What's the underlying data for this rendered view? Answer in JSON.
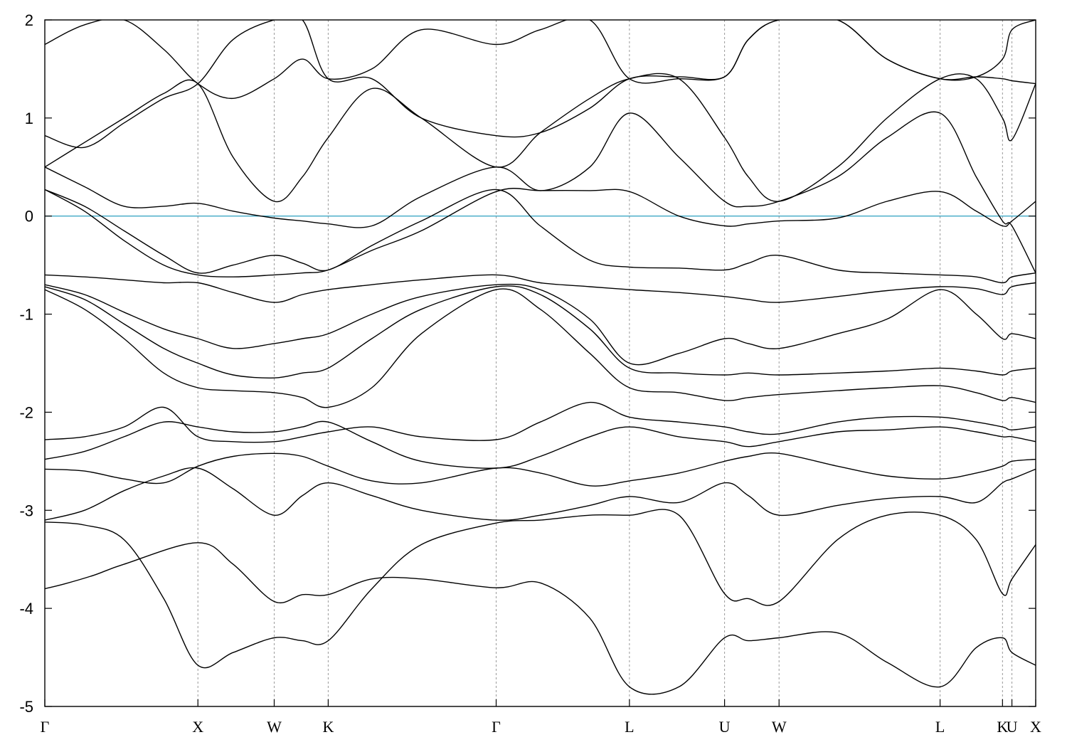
{
  "chart_data": {
    "type": "line",
    "title": "",
    "xlabel": "",
    "ylabel": "",
    "ylim": [
      -5,
      2
    ],
    "xlim": [
      0,
      1
    ],
    "grid": "dashed vertical lines at high-symmetry points",
    "legend": "none",
    "yticks": [
      "-5",
      "-4",
      "-3",
      "-2",
      "-1",
      "0",
      "1",
      "2"
    ],
    "ytick_values": [
      -5,
      -4,
      -3,
      -2,
      -1,
      0,
      1,
      2
    ],
    "kpoints": [
      {
        "label": "Γ",
        "x": 0.0
      },
      {
        "label": "X",
        "x": 0.1545
      },
      {
        "label": "W",
        "x": 0.2315
      },
      {
        "label": "K",
        "x": 0.286
      },
      {
        "label": "Γ",
        "x": 0.4555
      },
      {
        "label": "L",
        "x": 0.59
      },
      {
        "label": "U",
        "x": 0.686
      },
      {
        "label": "W",
        "x": 0.741
      },
      {
        "label": "L",
        "x": 0.9035
      },
      {
        "label": "K",
        "x": 0.9665
      },
      {
        "label": "U",
        "x": 0.976
      },
      {
        "label": "X",
        "x": 1.0
      }
    ],
    "fermi_level": 0,
    "colors": {
      "bands": "#000000",
      "fermi_line": "#3fa9c6"
    },
    "series": [
      {
        "x": [
          0,
          0.02,
          0.05,
          0.08,
          0.1545,
          0.19,
          0.2315,
          0.26,
          0.286,
          0.33,
          0.38,
          0.4555,
          0.5,
          0.55,
          0.59,
          0.64,
          0.686,
          0.71,
          0.741,
          0.8,
          0.85,
          0.9035,
          0.94,
          0.9665,
          0.976,
          1.0
        ],
        "y": [
          -3.8,
          -3.75,
          -3.66,
          -3.55,
          -3.33,
          -3.55,
          -3.93,
          -3.86,
          -3.86,
          -3.7,
          -3.7,
          -3.79,
          -3.74,
          -4.1,
          -4.8,
          -4.8,
          -4.3,
          -4.33,
          -4.3,
          -4.25,
          -4.55,
          -4.8,
          -4.4,
          -4.3,
          -4.45,
          -4.58
        ]
      },
      {
        "x": [
          0,
          0.04,
          0.08,
          0.12,
          0.1545,
          0.19,
          0.2315,
          0.26,
          0.286,
          0.33,
          0.38,
          0.4555,
          0.5,
          0.55,
          0.59,
          0.64,
          0.686,
          0.71,
          0.741,
          0.8,
          0.85,
          0.9035,
          0.94,
          0.9665,
          0.976,
          1.0
        ],
        "y": [
          -3.12,
          -3.15,
          -3.3,
          -3.9,
          -4.58,
          -4.45,
          -4.3,
          -4.33,
          -4.33,
          -3.8,
          -3.35,
          -3.13,
          -3.1,
          -3.05,
          -3.05,
          -3.05,
          -3.85,
          -3.9,
          -3.93,
          -3.3,
          -3.05,
          -3.05,
          -3.3,
          -3.85,
          -3.7,
          -3.35
        ]
      },
      {
        "x": [
          0,
          0.04,
          0.08,
          0.12,
          0.1545,
          0.19,
          0.2315,
          0.26,
          0.286,
          0.33,
          0.38,
          0.4555,
          0.5,
          0.55,
          0.59,
          0.64,
          0.686,
          0.71,
          0.741,
          0.8,
          0.85,
          0.9035,
          0.94,
          0.9665,
          0.976,
          1.0
        ],
        "y": [
          -3.1,
          -3.0,
          -2.8,
          -2.65,
          -2.57,
          -2.78,
          -3.05,
          -2.85,
          -2.72,
          -2.85,
          -3.0,
          -3.1,
          -3.05,
          -2.95,
          -2.86,
          -2.92,
          -2.72,
          -2.85,
          -3.05,
          -2.95,
          -2.88,
          -2.86,
          -2.92,
          -2.72,
          -2.68,
          -2.58
        ]
      },
      {
        "x": [
          0,
          0.04,
          0.08,
          0.12,
          0.1545,
          0.19,
          0.2315,
          0.26,
          0.286,
          0.33,
          0.38,
          0.4555,
          0.5,
          0.55,
          0.59,
          0.64,
          0.686,
          0.71,
          0.741,
          0.8,
          0.85,
          0.9035,
          0.94,
          0.9665,
          0.976,
          1.0
        ],
        "y": [
          -2.58,
          -2.6,
          -2.68,
          -2.72,
          -2.55,
          -2.45,
          -2.42,
          -2.45,
          -2.55,
          -2.7,
          -2.72,
          -2.57,
          -2.62,
          -2.75,
          -2.7,
          -2.62,
          -2.5,
          -2.45,
          -2.42,
          -2.55,
          -2.65,
          -2.68,
          -2.62,
          -2.55,
          -2.5,
          -2.48
        ]
      },
      {
        "x": [
          0,
          0.04,
          0.08,
          0.12,
          0.1545,
          0.19,
          0.2315,
          0.26,
          0.286,
          0.33,
          0.38,
          0.4555,
          0.5,
          0.55,
          0.59,
          0.64,
          0.686,
          0.71,
          0.741,
          0.8,
          0.85,
          0.9035,
          0.94,
          0.9665,
          0.976,
          1.0
        ],
        "y": [
          -2.48,
          -2.4,
          -2.25,
          -2.1,
          -2.15,
          -2.2,
          -2.2,
          -2.15,
          -2.1,
          -2.3,
          -2.5,
          -2.57,
          -2.45,
          -2.25,
          -2.15,
          -2.25,
          -2.3,
          -2.35,
          -2.3,
          -2.2,
          -2.18,
          -2.15,
          -2.2,
          -2.25,
          -2.25,
          -2.3
        ]
      },
      {
        "x": [
          0,
          0.04,
          0.08,
          0.12,
          0.1545,
          0.19,
          0.2315,
          0.26,
          0.286,
          0.33,
          0.38,
          0.4555,
          0.5,
          0.55,
          0.59,
          0.64,
          0.686,
          0.71,
          0.741,
          0.8,
          0.85,
          0.9035,
          0.94,
          0.9665,
          0.976,
          1.0
        ],
        "y": [
          -2.28,
          -2.25,
          -2.15,
          -1.95,
          -2.25,
          -2.3,
          -2.3,
          -2.25,
          -2.2,
          -2.15,
          -2.25,
          -2.28,
          -2.1,
          -1.9,
          -2.05,
          -2.1,
          -2.15,
          -2.2,
          -2.22,
          -2.1,
          -2.05,
          -2.05,
          -2.1,
          -2.15,
          -2.18,
          -2.15
        ]
      },
      {
        "x": [
          0,
          0.04,
          0.08,
          0.12,
          0.1545,
          0.19,
          0.2315,
          0.26,
          0.286,
          0.33,
          0.38,
          0.4555,
          0.5,
          0.55,
          0.59,
          0.64,
          0.686,
          0.71,
          0.741,
          0.8,
          0.85,
          0.9035,
          0.94,
          0.9665,
          0.976,
          1.0
        ],
        "y": [
          -0.75,
          -0.95,
          -1.25,
          -1.6,
          -1.75,
          -1.78,
          -1.8,
          -1.85,
          -1.95,
          -1.75,
          -1.2,
          -0.75,
          -0.95,
          -1.4,
          -1.75,
          -1.8,
          -1.88,
          -1.85,
          -1.82,
          -1.78,
          -1.75,
          -1.73,
          -1.8,
          -1.88,
          -1.85,
          -1.9
        ]
      },
      {
        "x": [
          0,
          0.04,
          0.08,
          0.12,
          0.1545,
          0.19,
          0.2315,
          0.26,
          0.286,
          0.33,
          0.38,
          0.4555,
          0.5,
          0.55,
          0.59,
          0.64,
          0.686,
          0.71,
          0.741,
          0.8,
          0.85,
          0.9035,
          0.94,
          0.9665,
          0.976,
          1.0
        ],
        "y": [
          -0.72,
          -0.85,
          -1.1,
          -1.35,
          -1.5,
          -1.62,
          -1.65,
          -1.6,
          -1.55,
          -1.25,
          -0.95,
          -0.72,
          -0.8,
          -1.15,
          -1.55,
          -1.6,
          -1.62,
          -1.6,
          -1.62,
          -1.6,
          -1.58,
          -1.55,
          -1.58,
          -1.62,
          -1.58,
          -1.55
        ]
      },
      {
        "x": [
          0,
          0.04,
          0.08,
          0.12,
          0.1545,
          0.19,
          0.2315,
          0.26,
          0.286,
          0.33,
          0.38,
          0.4555,
          0.5,
          0.55,
          0.59,
          0.64,
          0.686,
          0.71,
          0.741,
          0.8,
          0.85,
          0.9035,
          0.94,
          0.9665,
          0.976,
          1.0
        ],
        "y": [
          -0.7,
          -0.8,
          -0.98,
          -1.15,
          -1.25,
          -1.35,
          -1.3,
          -1.25,
          -1.2,
          -1.0,
          -0.82,
          -0.7,
          -0.75,
          -1.05,
          -1.5,
          -1.4,
          -1.25,
          -1.3,
          -1.35,
          -1.2,
          -1.05,
          -0.75,
          -1.0,
          -1.25,
          -1.2,
          -1.25
        ]
      },
      {
        "x": [
          0,
          0.04,
          0.08,
          0.12,
          0.1545,
          0.19,
          0.2315,
          0.26,
          0.286,
          0.33,
          0.38,
          0.4555,
          0.5,
          0.55,
          0.59,
          0.64,
          0.686,
          0.71,
          0.741,
          0.8,
          0.85,
          0.9035,
          0.94,
          0.9665,
          0.976,
          1.0
        ],
        "y": [
          -0.6,
          -0.62,
          -0.65,
          -0.68,
          -0.68,
          -0.78,
          -0.88,
          -0.8,
          -0.75,
          -0.7,
          -0.65,
          -0.6,
          -0.68,
          -0.72,
          -0.75,
          -0.78,
          -0.82,
          -0.85,
          -0.88,
          -0.82,
          -0.76,
          -0.72,
          -0.74,
          -0.8,
          -0.72,
          -0.68
        ]
      },
      {
        "x": [
          0,
          0.04,
          0.08,
          0.12,
          0.1545,
          0.19,
          0.2315,
          0.26,
          0.286,
          0.33,
          0.38,
          0.4555,
          0.5,
          0.55,
          0.59,
          0.64,
          0.686,
          0.71,
          0.741,
          0.8,
          0.85,
          0.9035,
          0.94,
          0.9665,
          0.976,
          1.0
        ],
        "y": [
          0.27,
          0.1,
          -0.15,
          -0.4,
          -0.58,
          -0.5,
          -0.4,
          -0.48,
          -0.55,
          -0.3,
          -0.05,
          0.27,
          -0.1,
          -0.45,
          -0.52,
          -0.53,
          -0.55,
          -0.48,
          -0.4,
          -0.55,
          -0.58,
          -0.6,
          -0.62,
          -0.68,
          -0.62,
          -0.58
        ]
      },
      {
        "x": [
          0,
          0.04,
          0.08,
          0.12,
          0.1545,
          0.19,
          0.2315,
          0.26,
          0.286,
          0.33,
          0.38,
          0.4555,
          0.5,
          0.55,
          0.59,
          0.64,
          0.686,
          0.71,
          0.741,
          0.8,
          0.85,
          0.9035,
          0.94,
          0.9665,
          0.976,
          1.0
        ],
        "y": [
          0.27,
          0.05,
          -0.25,
          -0.5,
          -0.6,
          -0.62,
          -0.6,
          -0.58,
          -0.55,
          -0.35,
          -0.15,
          0.25,
          0.26,
          0.26,
          0.25,
          0.0,
          -0.1,
          -0.08,
          -0.05,
          -0.02,
          0.15,
          0.25,
          0.05,
          -0.1,
          -0.05,
          0.15
        ]
      },
      {
        "x": [
          0,
          0.04,
          0.08,
          0.12,
          0.1545,
          0.19,
          0.2315,
          0.26,
          0.286,
          0.33,
          0.38,
          0.4555,
          0.5,
          0.55,
          0.59,
          0.64,
          0.686,
          0.71,
          0.741,
          0.8,
          0.85,
          0.9035,
          0.94,
          0.9665,
          0.976,
          1.0
        ],
        "y": [
          0.5,
          0.3,
          0.1,
          0.1,
          0.13,
          0.05,
          -0.02,
          -0.05,
          -0.08,
          -0.1,
          0.2,
          0.5,
          0.26,
          0.5,
          1.05,
          0.6,
          0.15,
          0.1,
          0.15,
          0.4,
          0.8,
          1.05,
          0.4,
          -0.05,
          -0.1,
          -0.58
        ]
      },
      {
        "x": [
          0,
          0.04,
          0.08,
          0.12,
          0.1545,
          0.19,
          0.2315,
          0.26,
          0.286,
          0.33,
          0.38,
          0.4555,
          0.5,
          0.55,
          0.59,
          0.64,
          0.686,
          0.71,
          0.741,
          0.8,
          0.85,
          0.9035,
          0.94,
          0.9665,
          0.976,
          1.0
        ],
        "y": [
          0.5,
          0.75,
          1.0,
          1.25,
          1.35,
          0.6,
          0.15,
          0.4,
          0.8,
          1.3,
          1.0,
          0.5,
          0.85,
          1.2,
          1.4,
          1.4,
          0.8,
          0.4,
          0.15,
          0.5,
          1.0,
          1.4,
          1.4,
          1.0,
          0.78,
          1.35
        ]
      },
      {
        "x": [
          0,
          0.04,
          0.08,
          0.12,
          0.1545,
          0.19,
          0.2315,
          0.26,
          0.286,
          0.33,
          0.38,
          0.4555,
          0.5,
          0.55,
          0.59,
          0.64,
          0.686,
          0.71,
          0.741,
          0.8,
          0.85,
          0.9035,
          0.94,
          0.9665,
          0.976,
          1.0
        ],
        "y": [
          0.82,
          0.7,
          0.95,
          1.2,
          1.35,
          1.8,
          2.0,
          2.0,
          1.4,
          1.4,
          1.0,
          0.82,
          0.85,
          1.1,
          1.4,
          1.42,
          1.42,
          1.8,
          2.0,
          2.0,
          1.6,
          1.4,
          1.42,
          1.4,
          1.38,
          1.35
        ]
      },
      {
        "x": [
          0,
          0.04,
          0.08,
          0.12,
          0.1545,
          0.19,
          0.2315,
          0.26,
          0.286,
          0.33,
          0.38,
          0.4555,
          0.5,
          0.55,
          0.59,
          0.64,
          0.686,
          0.71,
          0.741,
          0.8,
          0.85,
          0.9035,
          0.94,
          0.9665,
          0.976,
          1.0
        ],
        "y": [
          1.75,
          1.95,
          2.0,
          1.7,
          1.35,
          1.2,
          1.4,
          1.6,
          1.4,
          1.5,
          1.9,
          1.75,
          1.9,
          2.0,
          1.4,
          1.4,
          1.42,
          1.8,
          2.0,
          2.0,
          1.6,
          1.4,
          1.42,
          1.6,
          1.9,
          2.0
        ]
      }
    ]
  }
}
